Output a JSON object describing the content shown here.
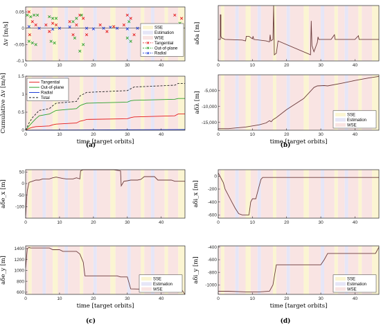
{
  "colors": {
    "sse": "#fbf5d2",
    "estimation": "#e6e6f7",
    "wse": "#f9e4e3",
    "tangential": "#e41a1c",
    "out_of_plane": "#2ca02c",
    "radial": "#1f3fd8",
    "total": "#222222",
    "state": "#6b3b3b"
  },
  "captions": {
    "a": "(a)",
    "b": "(b)",
    "c": "(c)",
    "d": "(d)"
  },
  "regime_legend": [
    "SSE",
    "Estimation",
    "WSE"
  ],
  "regimes": [
    [
      0,
      0.8,
      "wse"
    ],
    [
      0.8,
      1.8,
      "sse"
    ],
    [
      1.8,
      5,
      "wse"
    ],
    [
      5,
      6,
      "estimation"
    ],
    [
      6,
      8,
      "wse"
    ],
    [
      8,
      9.5,
      "sse"
    ],
    [
      9.5,
      11.5,
      "wse"
    ],
    [
      11.5,
      12.5,
      "estimation"
    ],
    [
      12.5,
      16,
      "wse"
    ],
    [
      16,
      17,
      "sse"
    ],
    [
      17,
      20,
      "wse"
    ],
    [
      20,
      21,
      "estimation"
    ],
    [
      21,
      25,
      "wse"
    ],
    [
      25,
      26.5,
      "sse"
    ],
    [
      26.5,
      30,
      "wse"
    ],
    [
      30,
      31,
      "estimation"
    ],
    [
      31,
      34,
      "wse"
    ],
    [
      34,
      35,
      "sse"
    ],
    [
      35,
      37,
      "wse"
    ],
    [
      37,
      38,
      "estimation"
    ],
    [
      38,
      41,
      "wse"
    ],
    [
      41,
      42,
      "sse"
    ],
    [
      42,
      45,
      "wse"
    ],
    [
      45,
      47,
      "sse"
    ]
  ],
  "chart_data": [
    {
      "id": "a-top",
      "type": "scatter",
      "ylabel": "Δv [m/s]",
      "xlim": [
        0,
        47
      ],
      "ylim": [
        -0.1,
        0.065
      ],
      "xticks": [
        0,
        10,
        20,
        30,
        40
      ],
      "xtick_labels": [
        "0",
        "10",
        "20",
        "30",
        "40"
      ],
      "yticks": [
        -0.1,
        -0.05,
        0,
        0.05
      ],
      "ytick_labels": [
        "-0.1",
        "-0.05",
        "0",
        "0.05"
      ],
      "legend": [
        "SSE",
        "Estimation",
        "WSE",
        "Tangential",
        "Out-of-plane",
        "Radial"
      ],
      "series": [
        {
          "name": "Tangential",
          "color": "tangential",
          "marker": "x",
          "x": [
            1,
            1.2,
            2,
            3,
            6,
            7,
            8,
            9,
            13,
            14,
            15,
            16,
            17,
            18,
            22,
            24,
            26,
            29,
            30,
            31,
            32,
            35,
            38,
            44,
            45,
            46
          ],
          "y": [
            0.05,
            -0.02,
            0.02,
            0.01,
            0.01,
            -0.01,
            0.015,
            0.01,
            0.02,
            -0.02,
            0.01,
            0.04,
            0.03,
            -0.02,
            0.01,
            -0.01,
            0.005,
            0.01,
            0.04,
            0.03,
            -0.02,
            0.01,
            0.005,
            0.04,
            -0.02,
            0.03
          ]
        },
        {
          "name": "Out-of-plane",
          "color": "out_of_plane",
          "marker": "x",
          "x": [
            0.5,
            1,
            1.5,
            2,
            2.5,
            3,
            3.5,
            7,
            7.5,
            8,
            8.5,
            9,
            14,
            14.5,
            15,
            16,
            16.5,
            17,
            30,
            30.5,
            31,
            45,
            45.5,
            46
          ],
          "y": [
            0.04,
            -0.04,
            0.035,
            -0.045,
            0.04,
            -0.05,
            0.04,
            0.035,
            -0.04,
            0.03,
            -0.045,
            0.03,
            0.02,
            -0.03,
            0.03,
            -0.07,
            0.04,
            -0.05,
            -0.03,
            0.02,
            -0.04,
            -0.02,
            0.015,
            -0.035
          ]
        },
        {
          "name": "Radial",
          "color": "radial",
          "marker": "x",
          "x": [
            1,
            4,
            8,
            10,
            13,
            18,
            20,
            23,
            25,
            27,
            30,
            33,
            36,
            40,
            42,
            45
          ],
          "y": [
            0.005,
            0,
            -0.003,
            0,
            0.004,
            0,
            -0.002,
            0,
            0.003,
            0,
            -0.002,
            0,
            0.002,
            0,
            -0.002,
            0
          ]
        }
      ]
    },
    {
      "id": "a-bottom",
      "type": "line",
      "ylabel": "Cumulative Δv [m/s]",
      "xlabel": "time [target orbits]",
      "xlim": [
        0,
        47
      ],
      "ylim": [
        0,
        1.5
      ],
      "xticks": [
        0,
        10,
        20,
        30,
        40
      ],
      "xtick_labels": [
        "0",
        "10",
        "20",
        "30",
        "40"
      ],
      "yticks": [
        0,
        0.5,
        1,
        1.5
      ],
      "ytick_labels": [
        "0",
        "0.5",
        "1",
        "1.5"
      ],
      "legend": [
        "Tangential",
        "Out-of-plane",
        "Radial",
        "Total"
      ],
      "series": [
        {
          "name": "Tangential",
          "color": "tangential",
          "dash": false,
          "x": [
            0,
            1,
            2,
            3,
            7,
            8,
            9,
            15,
            16,
            17,
            18,
            30,
            31,
            32,
            44,
            45,
            47
          ],
          "y": [
            0,
            0.05,
            0.08,
            0.1,
            0.12,
            0.15,
            0.17,
            0.2,
            0.25,
            0.27,
            0.3,
            0.32,
            0.35,
            0.37,
            0.4,
            0.45,
            0.45
          ]
        },
        {
          "name": "Out-of-plane",
          "color": "out_of_plane",
          "dash": false,
          "x": [
            0,
            1,
            2,
            3,
            4,
            7,
            8,
            9,
            15,
            16,
            17,
            18,
            30,
            31,
            32,
            44,
            45,
            47
          ],
          "y": [
            0,
            0.12,
            0.22,
            0.32,
            0.4,
            0.45,
            0.5,
            0.55,
            0.6,
            0.68,
            0.72,
            0.75,
            0.78,
            0.82,
            0.83,
            0.86,
            0.88,
            0.88
          ]
        },
        {
          "name": "Radial",
          "color": "radial",
          "dash": false,
          "x": [
            0,
            47
          ],
          "y": [
            0,
            0.02
          ]
        },
        {
          "name": "Total",
          "color": "total",
          "dash": true,
          "x": [
            0,
            1,
            2,
            3,
            4,
            7,
            8,
            9,
            15,
            16,
            17,
            18,
            30,
            31,
            32,
            44,
            45,
            47
          ],
          "y": [
            0,
            0.2,
            0.35,
            0.45,
            0.55,
            0.6,
            0.68,
            0.75,
            0.8,
            0.95,
            1.0,
            1.05,
            1.1,
            1.15,
            1.2,
            1.25,
            1.3,
            1.3
          ]
        }
      ]
    },
    {
      "id": "b-top",
      "type": "line",
      "ylabel": "aδa  [m]",
      "xlim": [
        0,
        47
      ],
      "ylim": [
        -150,
        30
      ],
      "xticks": [
        0,
        10,
        20,
        30,
        40
      ],
      "xtick_labels": [
        "0",
        "10",
        "20",
        "30",
        "40"
      ],
      "yticks": [],
      "ytick_labels": [],
      "series": [
        {
          "name": "",
          "color": "state",
          "x": [
            0,
            0.6,
            0.6,
            0.8,
            0.8,
            1,
            2,
            7,
            8,
            8.2,
            9,
            10,
            10.2,
            10.4,
            14,
            15,
            15.2,
            15.4,
            16,
            16.2,
            16.4,
            17,
            17.5,
            27,
            27.2,
            27.4,
            28,
            29,
            29.2,
            29.4,
            30,
            33,
            34,
            34.2,
            40,
            41,
            41.2,
            47
          ],
          "y": [
            -80,
            -80,
            0,
            0,
            -70,
            -75,
            -80,
            -82,
            -85,
            -70,
            -70,
            -78,
            -70,
            -80,
            -85,
            -88,
            -65,
            -85,
            -80,
            30,
            -130,
            -125,
            -85,
            -130,
            -20,
            -100,
            -120,
            -90,
            -72,
            -80,
            -80,
            -80,
            -65,
            -80,
            -80,
            -68,
            -80,
            -80
          ]
        }
      ]
    },
    {
      "id": "b-bottom",
      "type": "line",
      "ylabel": "aδλ  [m]",
      "xlabel": "time [target orbits]",
      "xlim": [
        0,
        47
      ],
      "ylim": [
        -17500,
        0
      ],
      "xticks": [
        0,
        10,
        20,
        30,
        40
      ],
      "xtick_labels": [
        "0",
        "10",
        "20",
        "30",
        "40"
      ],
      "yticks": [
        -15000,
        -10000,
        -5000
      ],
      "ytick_labels": [
        "-15,000",
        "-10,000",
        "-5,000"
      ],
      "legend": [
        "SSE",
        "Estimation",
        "WSE"
      ],
      "series": [
        {
          "name": "",
          "color": "state",
          "x": [
            0,
            3,
            8,
            12,
            14,
            15,
            15.5,
            16,
            17,
            20,
            25,
            28,
            29,
            31,
            32,
            36,
            40,
            44,
            47
          ],
          "y": [
            -17000,
            -17000,
            -16500,
            -15800,
            -15200,
            -14500,
            -14800,
            -14200,
            -13500,
            -11000,
            -7500,
            -4000,
            -3500,
            -3400,
            -3500,
            -2700,
            -1800,
            -1000,
            -500
          ]
        }
      ]
    },
    {
      "id": "c-top",
      "type": "line",
      "ylabel": "aδe_x  [m]",
      "xlim": [
        0,
        47
      ],
      "ylim": [
        -150,
        60
      ],
      "xticks": [
        0,
        10,
        20,
        30,
        40
      ],
      "xtick_labels": [
        "0",
        "10",
        "20",
        "30",
        "40"
      ],
      "yticks": [
        -100,
        -50,
        0,
        50
      ],
      "ytick_labels": [
        "-100",
        "-50",
        "0",
        "50"
      ],
      "series": [
        {
          "name": "",
          "color": "state",
          "x": [
            0,
            0.3,
            0.5,
            1,
            2,
            3,
            4,
            5,
            6,
            7,
            8,
            9,
            10,
            11,
            12,
            14,
            15,
            16,
            16.2,
            17,
            18,
            26,
            28,
            28.2,
            29,
            30,
            31,
            33,
            34,
            35,
            38,
            39,
            43,
            44,
            47
          ],
          "y": [
            -140,
            -60,
            -30,
            5,
            10,
            15,
            15,
            20,
            20,
            20,
            25,
            28,
            25,
            22,
            20,
            20,
            25,
            20,
            55,
            60,
            60,
            60,
            55,
            -10,
            10,
            12,
            15,
            15,
            18,
            30,
            30,
            15,
            15,
            10,
            10
          ]
        }
      ]
    },
    {
      "id": "c-bottom",
      "type": "line",
      "ylabel": "aδe_y  [m]",
      "xlabel": "time [target orbits]",
      "xlim": [
        0,
        47
      ],
      "ylim": [
        560,
        1450
      ],
      "xticks": [
        0,
        10,
        20,
        30,
        40
      ],
      "xtick_labels": [
        "0",
        "10",
        "20",
        "30",
        "40"
      ],
      "yticks": [
        600,
        800,
        1000,
        1200,
        1400
      ],
      "ytick_labels": [
        "600",
        "800",
        "1000",
        "1200",
        "1400"
      ],
      "legend": [
        "SSE",
        "Estimation",
        "WSE"
      ],
      "series": [
        {
          "name": "",
          "color": "state",
          "x": [
            0,
            0.5,
            1,
            1.5,
            7,
            8,
            10,
            11,
            15,
            16,
            17,
            17.5,
            18,
            27,
            28,
            30,
            31,
            38,
            39,
            44,
            45,
            46,
            47
          ],
          "y": [
            1050,
            1400,
            1420,
            1410,
            1410,
            1380,
            1380,
            1350,
            1350,
            1300,
            1150,
            900,
            900,
            900,
            880,
            880,
            660,
            650,
            620,
            620,
            600,
            650,
            560
          ]
        }
      ]
    },
    {
      "id": "d-top",
      "type": "line",
      "ylabel": "aδi_x  [m]",
      "xlim": [
        0,
        47
      ],
      "ylim": [
        -650,
        100
      ],
      "xticks": [
        0,
        10,
        20,
        30,
        40
      ],
      "xtick_labels": [
        "0",
        "10",
        "20",
        "30",
        "40"
      ],
      "yticks": [
        -600,
        -400,
        -200,
        0
      ],
      "ytick_labels": [
        "-600",
        "-400",
        "-200",
        "0"
      ],
      "series": [
        {
          "name": "",
          "color": "state",
          "x": [
            0,
            0.5,
            1,
            1.5,
            2,
            3,
            4,
            5,
            6,
            7,
            8,
            9,
            9.5,
            10,
            11,
            12,
            12.5,
            13,
            14,
            47
          ],
          "y": [
            50,
            0,
            -50,
            -100,
            -200,
            -300,
            -400,
            -500,
            -580,
            -600,
            -600,
            -600,
            -400,
            -350,
            -350,
            -150,
            -50,
            -20,
            -20,
            -20
          ]
        }
      ]
    },
    {
      "id": "d-bottom",
      "type": "line",
      "ylabel": "aδi_y  [m]",
      "xlabel": "time [target orbits]",
      "xlim": [
        0,
        47
      ],
      "ylim": [
        -1150,
        -380
      ],
      "xticks": [
        0,
        10,
        20,
        30,
        40
      ],
      "xtick_labels": [
        "0",
        "10",
        "20",
        "30",
        "40"
      ],
      "yticks": [
        -1000,
        -800,
        -600,
        -400
      ],
      "ytick_labels": [
        "-1000",
        "-800",
        "-600",
        "-400"
      ],
      "legend": [
        "SSE",
        "Estimation",
        "WSE"
      ],
      "series": [
        {
          "name": "",
          "color": "state",
          "x": [
            0,
            3,
            8,
            12,
            15,
            16,
            17,
            30,
            31,
            32,
            46,
            47
          ],
          "y": [
            -1100,
            -1100,
            -1110,
            -1110,
            -1100,
            -1000,
            -680,
            -680,
            -600,
            -500,
            -500,
            -400
          ]
        }
      ]
    }
  ]
}
